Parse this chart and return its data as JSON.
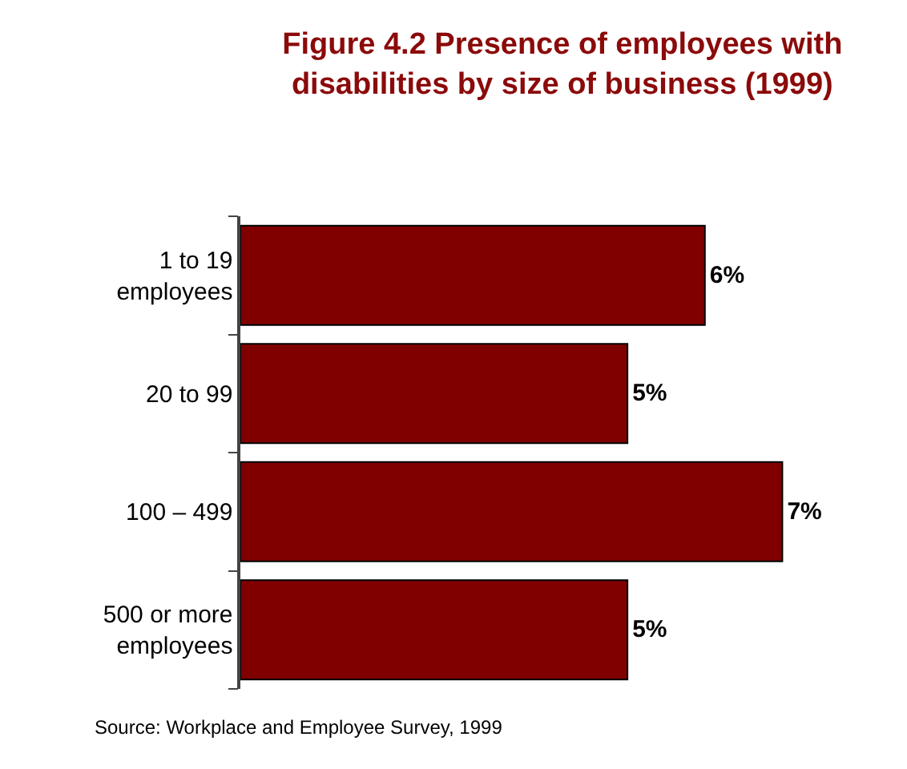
{
  "chart_data": {
    "type": "bar",
    "orientation": "horizontal",
    "title": "Figure 4.2 Presence of employees with\ndisabilities by size of business (1999)",
    "categories": [
      "1 to 19\nemployees",
      "20 to 99",
      "100 – 499",
      "500 or more\nemployees"
    ],
    "values": [
      6,
      5,
      7,
      5
    ],
    "value_labels": [
      "6%",
      "5%",
      "7%",
      "5%"
    ],
    "color": "#800000",
    "legend": false,
    "tick_labels": "y",
    "annotations": [
      "Source: Workplace and Employee Survey, 1999"
    ]
  }
}
